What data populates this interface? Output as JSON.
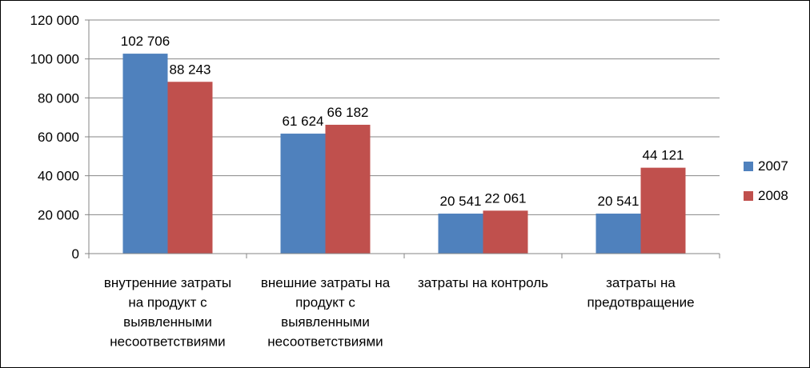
{
  "chart_data": {
    "type": "bar",
    "categories": [
      [
        "внутренние затраты",
        "на продукт с",
        "выявленными",
        "несоответствиями"
      ],
      [
        "внешние затраты на",
        "продукт с",
        "выявленными",
        "несоответствиями"
      ],
      [
        "затраты на контроль"
      ],
      [
        "затраты на",
        "предотвращение"
      ]
    ],
    "series": [
      {
        "name": "2007",
        "color": "#4f81bd",
        "values": [
          102706,
          61624,
          20541,
          20541
        ],
        "labels": [
          "102 706",
          "61 624",
          "20 541",
          "20 541"
        ]
      },
      {
        "name": "2008",
        "color": "#c0504d",
        "values": [
          88243,
          66182,
          22061,
          44121
        ],
        "labels": [
          "88 243",
          "66 182",
          "22 061",
          "44 121"
        ]
      }
    ],
    "ylim": [
      0,
      120000
    ],
    "yticks": [
      0,
      20000,
      40000,
      60000,
      80000,
      100000,
      120000
    ],
    "ytick_labels": [
      "0",
      "20 000",
      "40 000",
      "60 000",
      "80 000",
      "100 000",
      "120 000"
    ],
    "grid": true,
    "legend_position": "right",
    "title": "",
    "xlabel": "",
    "ylabel": ""
  }
}
